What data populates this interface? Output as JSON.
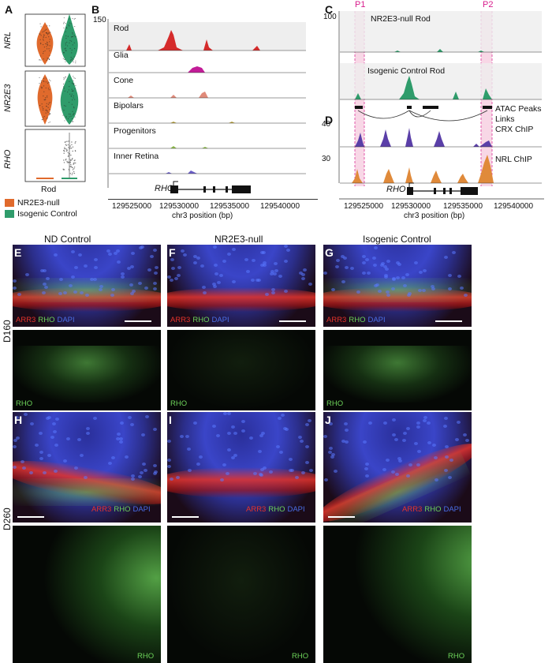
{
  "panels": {
    "A": {
      "label": "A",
      "genes": [
        "NRL",
        "NR2E3",
        "RHO"
      ],
      "xlabel": "Rod",
      "legend": [
        {
          "name": "NR2E3-null",
          "color": "#e06a2c"
        },
        {
          "name": "Isogenic Control",
          "color": "#2f9c6b"
        }
      ]
    },
    "B": {
      "label": "B",
      "ymax": "150",
      "tracks": [
        "Rod",
        "Glia",
        "Cone",
        "Bipolars",
        "Progenitors",
        "Inner Retina"
      ],
      "gene": "RHO",
      "ticks": [
        "129525000",
        "129530000",
        "129535000",
        "129540000"
      ],
      "xlabel": "chr3 position (bp)"
    },
    "C": {
      "label": "C",
      "ymax": "100",
      "tracks": [
        "NR2E3-null Rod",
        "Isogenic Control Rod"
      ],
      "peaks": [
        "P1",
        "P2"
      ],
      "rows": [
        "ATAC Peaks",
        "Links"
      ]
    },
    "D": {
      "label": "D",
      "tracks": [
        {
          "name": "CRX ChIP",
          "ymax": "40"
        },
        {
          "name": "NRL ChIP",
          "ymax": "30"
        }
      ],
      "gene": "RHO",
      "ticks": [
        "129525000",
        "129530000",
        "129535000",
        "129540000"
      ],
      "xlabel": "chr3 position (bp)"
    }
  },
  "micrographs": {
    "columns": [
      "ND Control",
      "NR2E3-null",
      "Isogenic Control"
    ],
    "rows": [
      "D160",
      "D260"
    ],
    "panel_labels": [
      "E",
      "F",
      "G",
      "H",
      "I",
      "J"
    ],
    "stain_red": "ARR3",
    "stain_green": "RHO",
    "stain_blue": "DAPI",
    "single_label": "RHO"
  },
  "colors": {
    "orange": "#e06a2c",
    "green": "#2f9c6b",
    "magenta": "#d81b8c",
    "purple": "#5a3fa8",
    "peak_orange": "#e08a3a",
    "highlight": "#f6c9dd",
    "red_fluor": "#e5332a",
    "green_fluor": "#6dd35a",
    "blue_fluor": "#4a6ee8"
  }
}
